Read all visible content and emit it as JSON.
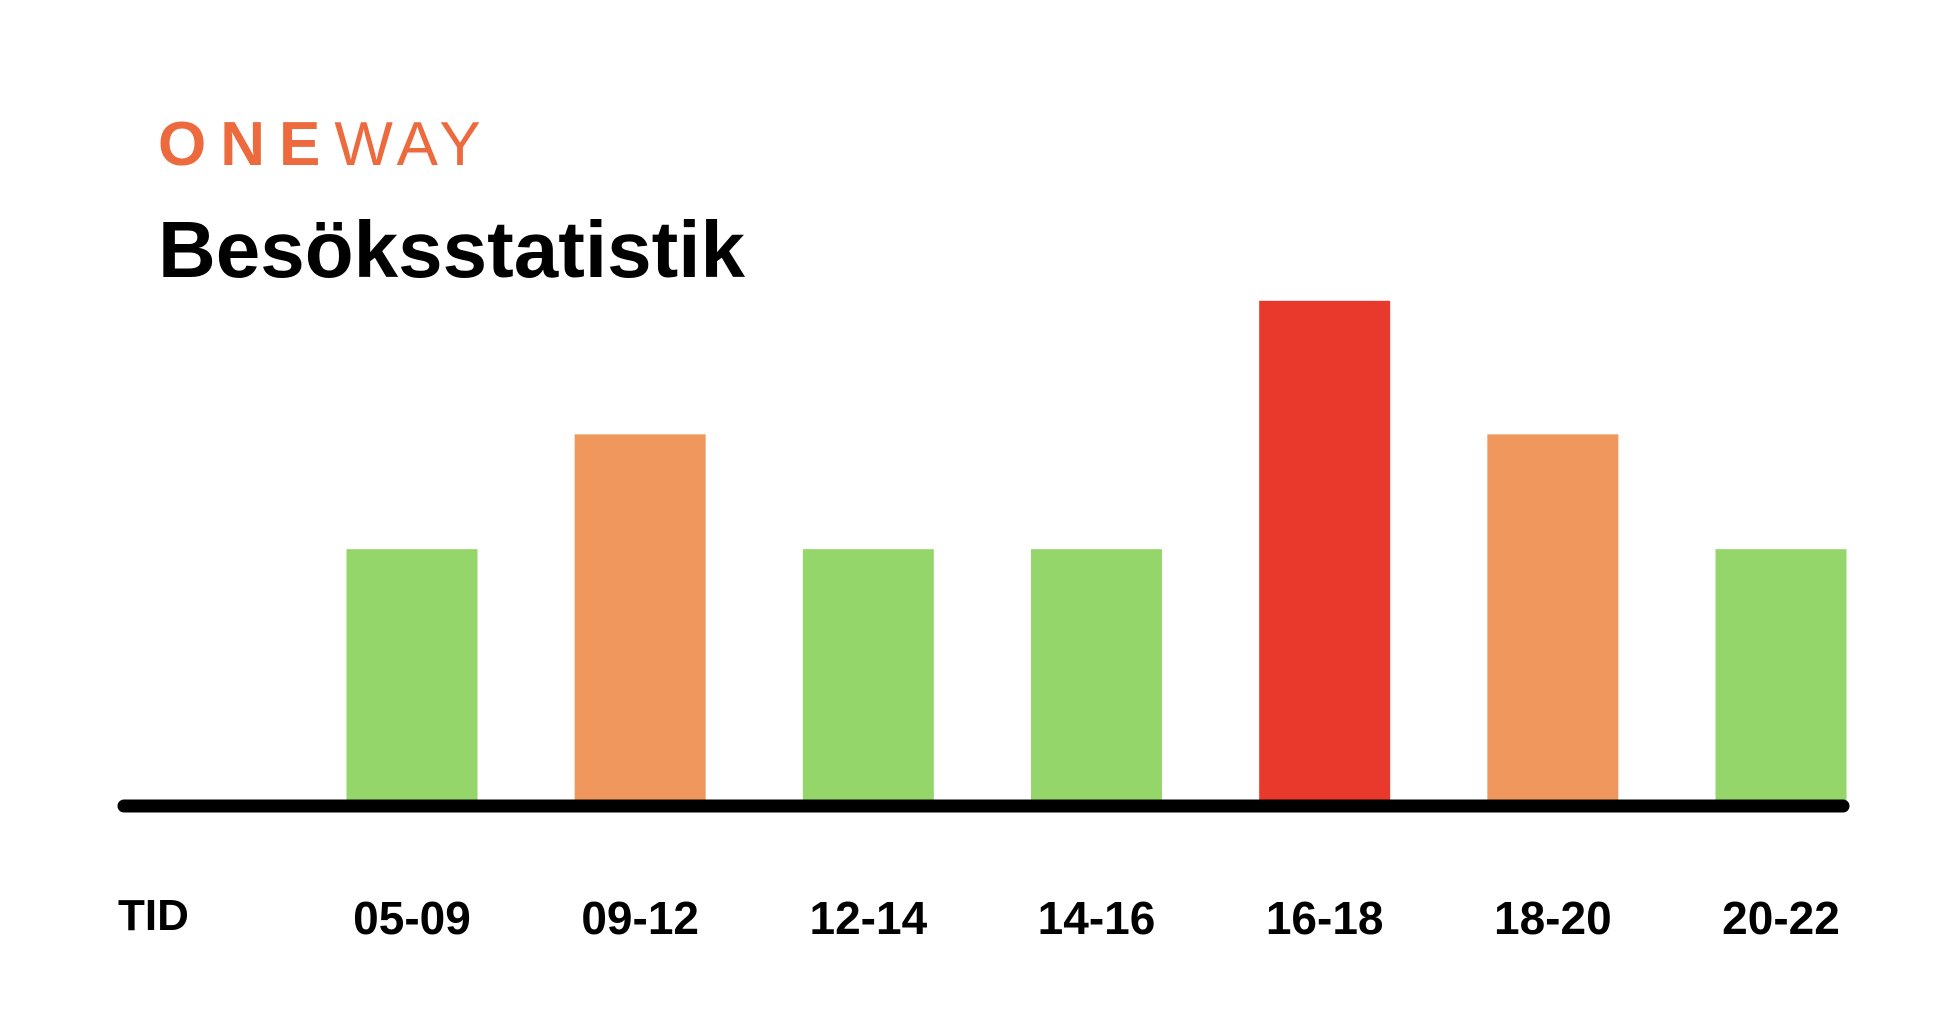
{
  "logo": {
    "bold": "ONE",
    "light": "WAY"
  },
  "chart_data": {
    "type": "bar",
    "title": "Besöksstatistik",
    "x_label": "TID",
    "categories": [
      "05-09",
      "09-12",
      "12-14",
      "14-16",
      "16-18",
      "18-20",
      "20-22"
    ],
    "values": [
      2.05,
      2.97,
      2.05,
      2.05,
      4.04,
      2.97,
      2.05
    ],
    "colors": [
      "#95d66b",
      "#ef975c",
      "#95d66b",
      "#95d66b",
      "#e9392d",
      "#ef975c",
      "#95d66b"
    ],
    "ylim": [
      0,
      5
    ]
  }
}
